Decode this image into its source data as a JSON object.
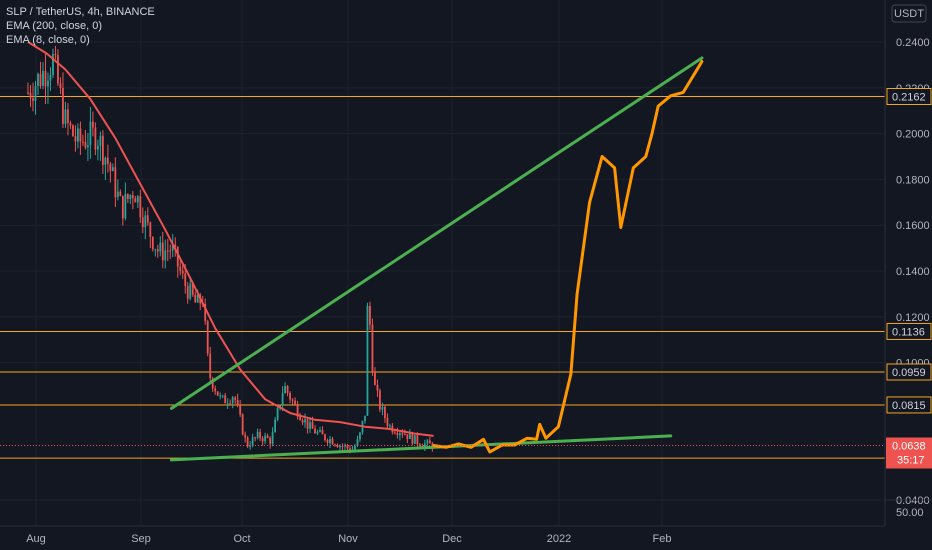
{
  "chart_data": {
    "type": "line",
    "title": "SLP / TetherUS, 4h, BINANCE",
    "currency": "USDT",
    "indicators": [
      "EMA (200, close, 0)",
      "EMA (8, close, 0)"
    ],
    "x_ticks": [
      "Aug",
      "Sep",
      "Oct",
      "Nov",
      "Dec",
      "2022",
      "Feb"
    ],
    "y_ticks": [
      "0.2400",
      "0.2200",
      "0.2000",
      "0.1800",
      "0.1600",
      "0.1400",
      "0.1200",
      "0.1000",
      "0.0400"
    ],
    "volume_tick": "50.00",
    "ylim": [
      0.04,
      0.245
    ],
    "horizontal_levels": [
      {
        "value": 0.2162,
        "label": "0.2162"
      },
      {
        "value": 0.1136,
        "label": "0.1136"
      },
      {
        "value": 0.0959,
        "label": "0.0959"
      },
      {
        "value": 0.0815,
        "label": "0.0815"
      },
      {
        "value": 0.0583,
        "label": "0.0583"
      }
    ],
    "current_price": {
      "value": 0.0638,
      "label": "0.0638",
      "countdown": "35:17"
    },
    "price_series": [
      {
        "x": 0,
        "y": 0.218
      },
      {
        "x": 4,
        "y": 0.225
      },
      {
        "x": 8,
        "y": 0.232
      },
      {
        "x": 12,
        "y": 0.205
      },
      {
        "x": 16,
        "y": 0.196
      },
      {
        "x": 22,
        "y": 0.2
      },
      {
        "x": 26,
        "y": 0.186
      },
      {
        "x": 30,
        "y": 0.167
      },
      {
        "x": 34,
        "y": 0.176
      },
      {
        "x": 38,
        "y": 0.16
      },
      {
        "x": 42,
        "y": 0.148
      },
      {
        "x": 46,
        "y": 0.15
      },
      {
        "x": 50,
        "y": 0.135
      },
      {
        "x": 54,
        "y": 0.125
      },
      {
        "x": 56,
        "y": 0.128
      },
      {
        "x": 58,
        "y": 0.095
      },
      {
        "x": 62,
        "y": 0.083
      },
      {
        "x": 66,
        "y": 0.086
      },
      {
        "x": 70,
        "y": 0.064
      },
      {
        "x": 74,
        "y": 0.068
      },
      {
        "x": 78,
        "y": 0.066
      },
      {
        "x": 82,
        "y": 0.09
      },
      {
        "x": 86,
        "y": 0.08
      },
      {
        "x": 90,
        "y": 0.072
      },
      {
        "x": 94,
        "y": 0.068
      },
      {
        "x": 98,
        "y": 0.066
      },
      {
        "x": 100,
        "y": 0.064
      },
      {
        "x": 104,
        "y": 0.062
      },
      {
        "x": 106,
        "y": 0.066
      },
      {
        "x": 108,
        "y": 0.078
      },
      {
        "x": 109,
        "y": 0.134
      },
      {
        "x": 110,
        "y": 0.105
      },
      {
        "x": 111,
        "y": 0.09
      },
      {
        "x": 113,
        "y": 0.08
      },
      {
        "x": 116,
        "y": 0.072
      },
      {
        "x": 120,
        "y": 0.07
      },
      {
        "x": 124,
        "y": 0.066
      },
      {
        "x": 128,
        "y": 0.064
      },
      {
        "x": 130,
        "y": 0.0638
      }
    ],
    "series": [
      {
        "name": "EMA (200, close, 0)",
        "color": "#ef5350",
        "points": [
          {
            "x": 0,
            "y": 0.24
          },
          {
            "x": 6,
            "y": 0.235
          },
          {
            "x": 12,
            "y": 0.228
          },
          {
            "x": 20,
            "y": 0.215
          },
          {
            "x": 28,
            "y": 0.198
          },
          {
            "x": 36,
            "y": 0.178
          },
          {
            "x": 44,
            "y": 0.158
          },
          {
            "x": 52,
            "y": 0.137
          },
          {
            "x": 60,
            "y": 0.115
          },
          {
            "x": 68,
            "y": 0.097
          },
          {
            "x": 76,
            "y": 0.084
          },
          {
            "x": 84,
            "y": 0.078
          },
          {
            "x": 92,
            "y": 0.075
          },
          {
            "x": 100,
            "y": 0.074
          },
          {
            "x": 108,
            "y": 0.072
          },
          {
            "x": 116,
            "y": 0.071
          },
          {
            "x": 124,
            "y": 0.069
          },
          {
            "x": 130,
            "y": 0.068
          }
        ]
      },
      {
        "name": "EMA (8, close, 0)",
        "color": "#2962ff",
        "points": []
      }
    ],
    "trendlines": [
      {
        "color": "#4caf50",
        "points": [
          {
            "x": 46,
            "y": 0.08
          },
          {
            "x": 216,
            "y": 0.233
          }
        ]
      },
      {
        "color": "#4caf50",
        "points": [
          {
            "x": 46,
            "y": 0.0575
          },
          {
            "x": 206,
            "y": 0.068
          }
        ]
      }
    ],
    "projection": {
      "color": "#ff9800",
      "points": [
        {
          "x": 130,
          "y": 0.0638
        },
        {
          "x": 134,
          "y": 0.063
        },
        {
          "x": 138,
          "y": 0.0645
        },
        {
          "x": 142,
          "y": 0.063
        },
        {
          "x": 146,
          "y": 0.0665
        },
        {
          "x": 148,
          "y": 0.061
        },
        {
          "x": 152,
          "y": 0.064
        },
        {
          "x": 156,
          "y": 0.064
        },
        {
          "x": 160,
          "y": 0.067
        },
        {
          "x": 163,
          "y": 0.0665
        },
        {
          "x": 164,
          "y": 0.073
        },
        {
          "x": 166,
          "y": 0.067
        },
        {
          "x": 170,
          "y": 0.072
        },
        {
          "x": 174,
          "y": 0.095
        },
        {
          "x": 176,
          "y": 0.13
        },
        {
          "x": 180,
          "y": 0.17
        },
        {
          "x": 184,
          "y": 0.19
        },
        {
          "x": 188,
          "y": 0.185
        },
        {
          "x": 190,
          "y": 0.159
        },
        {
          "x": 194,
          "y": 0.185
        },
        {
          "x": 198,
          "y": 0.19
        },
        {
          "x": 200,
          "y": 0.2
        },
        {
          "x": 202,
          "y": 0.212
        },
        {
          "x": 206,
          "y": 0.2165
        },
        {
          "x": 210,
          "y": 0.218
        },
        {
          "x": 214,
          "y": 0.227
        },
        {
          "x": 216,
          "y": 0.2315
        }
      ]
    },
    "grid": true,
    "theme": "dark"
  },
  "legend": {
    "title": "SLP / TetherUS, 4h, BINANCE",
    "ema200": "EMA (200, close, 0)",
    "ema8": "EMA (8, close, 0)"
  },
  "colors": {
    "background": "#131722",
    "grid": "#1e222d",
    "level": "#f5a623",
    "up": "#26a69a",
    "down": "#ef5350",
    "trend": "#4caf50",
    "projection": "#ff9800",
    "ema": "#ef5350"
  }
}
